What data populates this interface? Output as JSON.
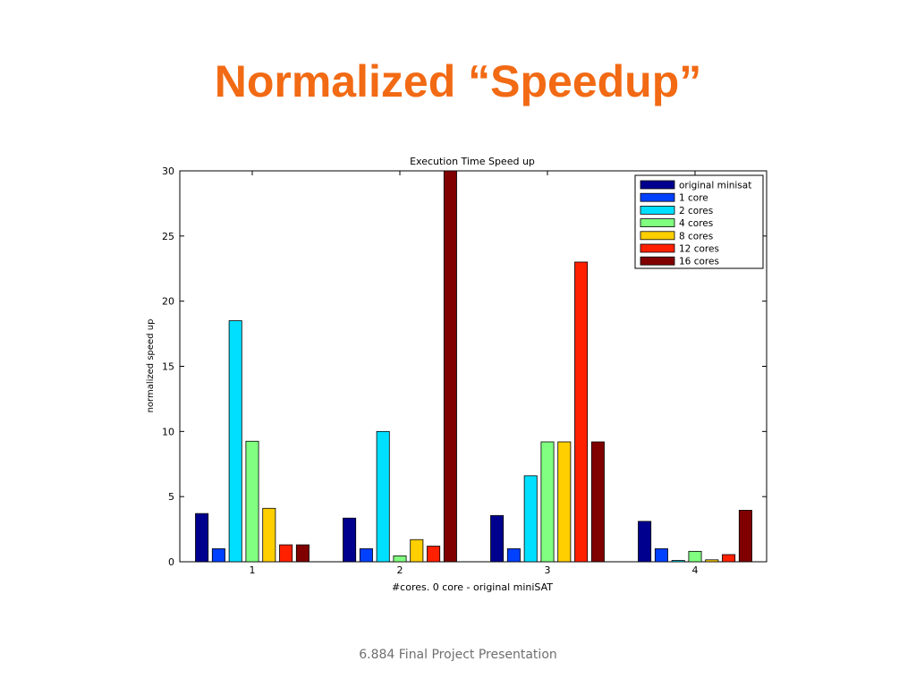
{
  "slide": {
    "title": "Normalized “Speedup”",
    "footer": "6.884 Final Project Presentation"
  },
  "chart_data": {
    "type": "bar",
    "title": "Execution Time Speed up",
    "xlabel": "#cores.   0 core - original miniSAT",
    "ylabel": "normalized speed up",
    "categories": [
      "1",
      "2",
      "3",
      "4"
    ],
    "ylim": [
      0,
      30
    ],
    "yticks": [
      0,
      5,
      10,
      15,
      20,
      25,
      30
    ],
    "legend_position": "top-right",
    "grid": false,
    "series": [
      {
        "name": "original minisat",
        "color": "#00008f",
        "values": [
          3.7,
          3.35,
          3.55,
          3.1
        ]
      },
      {
        "name": "1 core",
        "color": "#0040ff",
        "values": [
          1.0,
          1.0,
          1.0,
          1.0
        ]
      },
      {
        "name": "2 cores",
        "color": "#00dfff",
        "values": [
          18.5,
          10.0,
          6.6,
          0.1
        ]
      },
      {
        "name": "4 cores",
        "color": "#80ff80",
        "values": [
          9.25,
          0.45,
          9.2,
          0.8
        ]
      },
      {
        "name": "8 cores",
        "color": "#ffcf00",
        "values": [
          4.1,
          1.7,
          9.2,
          0.15
        ]
      },
      {
        "name": "12 cores",
        "color": "#ff2000",
        "values": [
          1.3,
          1.2,
          23.0,
          0.55
        ]
      },
      {
        "name": "16 cores",
        "color": "#800000",
        "values": [
          1.3,
          30.0,
          9.2,
          3.95
        ]
      }
    ]
  }
}
